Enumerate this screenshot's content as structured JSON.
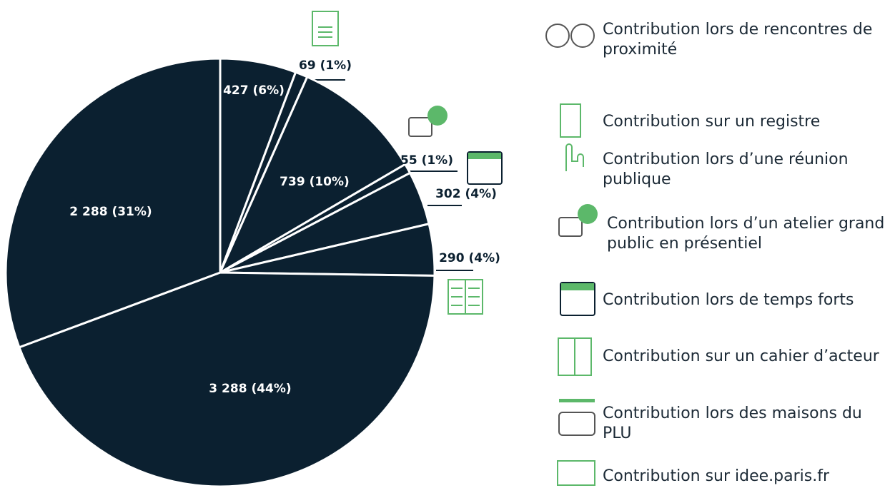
{
  "chart_data": {
    "type": "pie",
    "color": "#0b2030",
    "categories": [
      "Contribution lors de rencontres de proximité",
      "Contribution sur un registre",
      "Contribution lors d’une réunion publique",
      "Contribution lors d’un atelier grand public en présentiel",
      "Contribution lors de temps forts",
      "Contribution sur un cahier d’acteur",
      "Contribution lors des maisons du PLU",
      "Contribution sur idee.paris.fr"
    ],
    "values": [
      427,
      69,
      739,
      55,
      302,
      290,
      3288,
      2288
    ],
    "value_labels": [
      "427 (6%)",
      "69 (1%)",
      "739 (10%)",
      "55 (1%)",
      "302 (4%)",
      "290 (4%)",
      "3 288 (44%)",
      "2 288 (31%)"
    ]
  }
}
